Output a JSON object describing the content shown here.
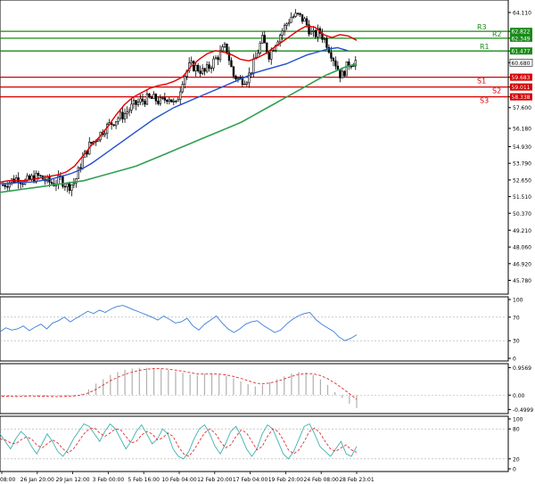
{
  "chart_data": [
    {
      "type": "candlestick",
      "ylim": [
        45.2,
        64.6
      ],
      "price_axis_ticks": [
        "64.110",
        "62.822",
        "62.349",
        "61.477",
        "60.680",
        "59.683",
        "59.011",
        "58.338",
        "57.600",
        "56.180",
        "54.930",
        "53.790",
        "52.650",
        "51.510",
        "50.370",
        "49.210",
        "48.060",
        "46.920",
        "45.780"
      ],
      "price_axis_values": [
        64.11,
        62.822,
        62.349,
        61.477,
        60.68,
        59.683,
        59.011,
        58.338,
        57.6,
        56.18,
        54.93,
        53.79,
        52.65,
        51.51,
        50.37,
        49.21,
        48.06,
        46.92,
        45.78
      ],
      "pivot_levels": [
        {
          "name": "R3",
          "value": 62.822,
          "label": "62.822",
          "color": "#1a8a1a"
        },
        {
          "name": "R2",
          "value": 62.349,
          "label": "62.349",
          "color": "#1a8a1a"
        },
        {
          "name": "R1",
          "value": 61.477,
          "label": "61.477",
          "color": "#1a8a1a"
        },
        {
          "name": "S1",
          "value": 59.683,
          "label": "59.683",
          "color": "#d40000"
        },
        {
          "name": "S2",
          "value": 59.011,
          "label": "59.011",
          "color": "#d40000"
        },
        {
          "name": "S3",
          "value": 58.338,
          "label": "58.338",
          "color": "#d40000"
        }
      ],
      "price_label": {
        "value": 60.68,
        "label": "60.680"
      },
      "close_path": [
        52.3,
        52.55,
        52.8,
        52.5,
        52.75,
        52.9,
        52.6,
        52.4,
        52.7,
        52.2,
        52.5,
        54.0,
        55.0,
        55.5,
        56.1,
        56.5,
        56.9,
        57.2,
        57.7,
        58.0,
        58.2,
        58.2,
        57.95,
        58.4,
        57.7,
        59.6,
        60.5,
        60.3,
        60.0,
        60.6,
        61.2,
        61.8,
        59.8,
        59.5,
        59.6,
        60.8,
        62.3,
        61.2,
        62.2,
        63.0,
        63.8,
        63.9,
        63.5,
        62.5,
        62.8,
        62.0,
        60.9,
        59.7,
        60.6,
        60.8
      ],
      "candle_count": 160,
      "ma_fast": [
        52.5,
        52.6,
        52.6,
        52.6,
        52.7,
        52.8,
        52.9,
        53.0,
        53.2,
        53.6,
        54.3,
        55.0,
        55.6,
        56.3,
        57.1,
        57.8,
        58.3,
        58.6,
        58.9,
        59.1,
        59.2,
        59.4,
        59.7,
        60.4,
        60.9,
        61.3,
        61.5,
        61.4,
        61.2,
        60.9,
        60.8,
        61.0,
        61.3,
        61.7,
        62.1,
        62.5,
        62.9,
        63.2,
        63.1,
        62.6,
        62.4,
        62.6,
        62.5,
        62.2
      ],
      "ma_mid": [
        52.4,
        52.4,
        52.5,
        52.5,
        52.6,
        52.7,
        52.9,
        53.1,
        53.4,
        53.8,
        54.3,
        54.8,
        55.3,
        55.8,
        56.3,
        56.8,
        57.2,
        57.6,
        57.9,
        58.2,
        58.5,
        58.8,
        59.1,
        59.4,
        59.7,
        60.0,
        60.2,
        60.4,
        60.6,
        60.9,
        61.2,
        61.4,
        61.6,
        61.7,
        61.5
      ],
      "ma_slow": [
        51.8,
        51.9,
        52.0,
        52.1,
        52.2,
        52.3,
        52.4,
        52.5,
        52.6,
        52.8,
        53.0,
        53.2,
        53.4,
        53.6,
        53.9,
        54.2,
        54.5,
        54.8,
        55.1,
        55.4,
        55.7,
        56.0,
        56.3,
        56.6,
        57.0,
        57.4,
        57.8,
        58.2,
        58.6,
        59.0,
        59.4,
        59.8,
        60.1,
        60.4,
        60.6
      ]
    },
    {
      "type": "line",
      "ticks": [
        "100",
        "70",
        "30",
        "0"
      ],
      "tick_values": [
        100,
        70,
        30,
        0
      ],
      "ylim": [
        0,
        100
      ],
      "values": [
        45,
        52,
        48,
        50,
        55,
        47,
        53,
        58,
        50,
        60,
        64,
        70,
        62,
        68,
        74,
        80,
        76,
        82,
        78,
        84,
        88,
        90,
        86,
        82,
        78,
        74,
        70,
        65,
        72,
        66,
        60,
        62,
        68,
        55,
        48,
        58,
        65,
        72,
        60,
        50,
        44,
        50,
        58,
        62,
        64,
        56,
        50,
        44,
        48,
        58,
        66,
        72,
        76,
        78,
        66,
        58,
        52,
        46,
        36,
        30,
        34,
        40
      ]
    },
    {
      "type": "bar",
      "ticks": [
        "0.9569",
        "0.00",
        "-0.4999"
      ],
      "tick_values": [
        0.9569,
        0.0,
        -0.4999
      ],
      "ylim": [
        -0.55,
        1.0
      ],
      "values": [
        -0.05,
        -0.04,
        -0.06,
        -0.03,
        -0.02,
        -0.05,
        -0.04,
        -0.06,
        -0.05,
        -0.03,
        -0.02,
        0.05,
        0.2,
        0.4,
        0.55,
        0.7,
        0.8,
        0.88,
        0.92,
        0.95,
        0.95,
        0.94,
        0.92,
        0.88,
        0.83,
        0.78,
        0.72,
        0.7,
        0.74,
        0.76,
        0.72,
        0.66,
        0.58,
        0.48,
        0.38,
        0.3,
        0.35,
        0.45,
        0.55,
        0.65,
        0.75,
        0.8,
        0.78,
        0.7,
        0.55,
        0.35,
        0.1,
        -0.1,
        -0.3,
        -0.45
      ],
      "signal": [
        -0.04,
        -0.04,
        -0.05,
        -0.04,
        -0.03,
        -0.04,
        -0.04,
        -0.05,
        -0.05,
        -0.04,
        -0.03,
        0.0,
        0.08,
        0.2,
        0.35,
        0.5,
        0.62,
        0.72,
        0.8,
        0.86,
        0.9,
        0.92,
        0.92,
        0.9,
        0.87,
        0.83,
        0.78,
        0.74,
        0.73,
        0.74,
        0.73,
        0.7,
        0.65,
        0.58,
        0.5,
        0.42,
        0.39,
        0.42,
        0.48,
        0.56,
        0.65,
        0.72,
        0.75,
        0.74,
        0.68,
        0.57,
        0.42,
        0.24,
        0.05,
        -0.15
      ]
    },
    {
      "type": "line",
      "ticks": [
        "100",
        "80",
        "20",
        "0"
      ],
      "tick_values": [
        100,
        80,
        20,
        0
      ],
      "ylim": [
        0,
        100
      ],
      "series": [
        {
          "values": [
            70,
            55,
            40,
            60,
            75,
            65,
            45,
            30,
            50,
            70,
            55,
            35,
            25,
            40,
            60,
            75,
            90,
            85,
            70,
            55,
            75,
            90,
            80,
            60,
            40,
            55,
            75,
            88,
            70,
            50,
            60,
            80,
            70,
            40,
            25,
            20,
            35,
            60,
            80,
            88,
            70,
            45,
            30,
            50,
            75,
            85,
            65,
            40,
            25,
            40,
            70,
            88,
            80,
            55,
            30,
            20,
            35,
            60,
            85,
            90,
            70,
            45,
            35,
            25,
            40,
            55,
            30,
            25,
            45
          ]
        },
        {
          "values": [
            60,
            58,
            52,
            50,
            58,
            64,
            60,
            48,
            42,
            50,
            58,
            52,
            40,
            32,
            40,
            55,
            70,
            80,
            82,
            72,
            65,
            72,
            80,
            78,
            65,
            52,
            55,
            68,
            75,
            70,
            58,
            62,
            72,
            65,
            45,
            30,
            25,
            38,
            55,
            72,
            80,
            72,
            55,
            42,
            48,
            65,
            78,
            72,
            55,
            38,
            45,
            65,
            80,
            75,
            58,
            38,
            30,
            38,
            55,
            75,
            82,
            72,
            55,
            40,
            35,
            42,
            48,
            38,
            33
          ]
        }
      ]
    }
  ],
  "time_axis_labels": [
    "08:00",
    "26 Jan 20:00",
    "29 Jan 12:00",
    "3 Feb 00:00",
    "5 Feb 16:00",
    "10 Feb 04:00",
    "12 Feb 20:00",
    "17 Feb 04:00",
    "19 Feb 20:00",
    "24 Feb 08:00",
    "28 Feb 23:01"
  ],
  "colors": {
    "up_candle": "#ffffff",
    "down_candle": "#000000",
    "ma_fast": "#e00000",
    "ma_mid": "#2050d0",
    "ma_slow": "#30a050",
    "rsi_line": "#3a7ed8",
    "macd_hist": "#b0b0b0",
    "macd_signal": "#e03030",
    "stoch_main": "#40b0b0",
    "stoch_signal": "#e03030"
  }
}
